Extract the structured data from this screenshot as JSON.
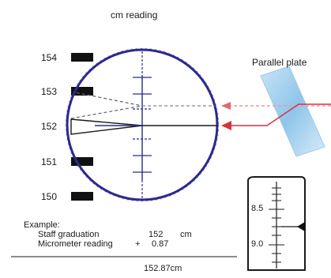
{
  "diagram": {
    "title": "cm reading",
    "plate_label": "Parallel plate",
    "staff_numbers": [
      "154",
      "153",
      "152",
      "151",
      "150"
    ],
    "micrometer_scale": [
      "8.5",
      "9.0"
    ],
    "example": {
      "heading": "Example:",
      "row1_label": "Staff graduation",
      "row1_value": "152",
      "row1_unit": "cm",
      "row2_label": "Micrometer reading",
      "row2_op": "+",
      "row2_value": "0.87",
      "result": "152.87cm"
    },
    "colors": {
      "circle": "#2b2a8c",
      "dotted": "#a98ee0",
      "ray": "#d8343d",
      "plate": "#7fb8e0"
    }
  }
}
